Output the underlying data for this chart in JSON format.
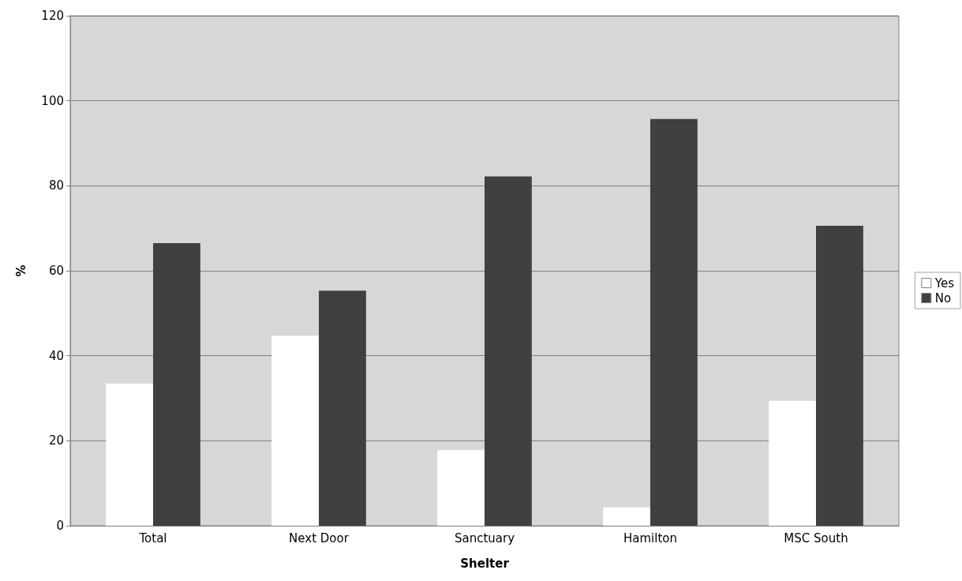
{
  "chart_data": {
    "type": "bar",
    "xlabel": "Shelter",
    "ylabel": "%",
    "categories": [
      "Total",
      "Next Door",
      "Sanctuary",
      "Hamilton",
      "MSC South"
    ],
    "series": [
      {
        "name": "Yes",
        "color": "#ffffff",
        "values": [
          33.5,
          44.7,
          17.8,
          4.3,
          29.4
        ]
      },
      {
        "name": "No",
        "color": "#404040",
        "values": [
          66.5,
          55.3,
          82.2,
          95.7,
          70.6
        ]
      }
    ],
    "ylim": [
      0,
      120
    ],
    "yticks": [
      0,
      20,
      40,
      60,
      80,
      100,
      120
    ],
    "grid": "y",
    "legend": "right"
  }
}
